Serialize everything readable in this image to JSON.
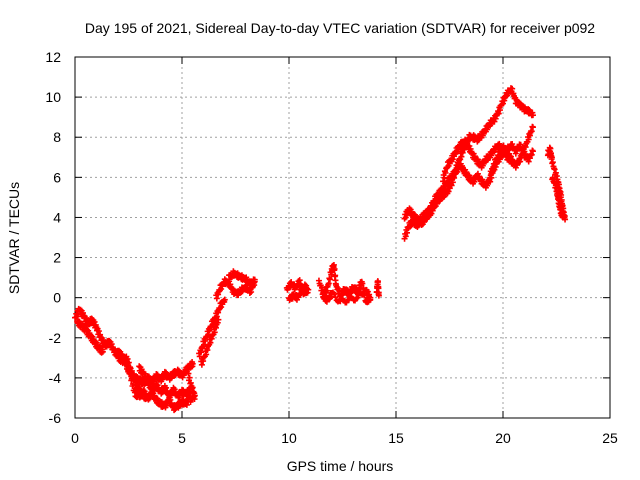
{
  "chart_data": {
    "type": "scatter",
    "title": "Day 195 of 2021, Sidereal Day-to-day VTEC variation (SDTVAR) for receiver p092",
    "xlabel": "GPS time / hours",
    "ylabel": "SDTVAR / TECUs",
    "xlim": [
      0,
      25
    ],
    "ylim": [
      -6,
      12
    ],
    "xticks": [
      0,
      5,
      10,
      15,
      20,
      25
    ],
    "yticks": [
      -6,
      -4,
      -2,
      0,
      2,
      4,
      6,
      8,
      10,
      12
    ],
    "grid": true,
    "marker": "+",
    "series": [
      {
        "name": "SDTVAR",
        "color": "#ff0000",
        "segments": [
          [
            [
              0.0,
              -1.0
            ],
            [
              0.2,
              -0.6
            ],
            [
              0.4,
              -0.9
            ],
            [
              0.6,
              -1.3
            ],
            [
              0.8,
              -1.1
            ],
            [
              1.0,
              -1.5
            ],
            [
              1.2,
              -2.0
            ],
            [
              1.4,
              -2.4
            ],
            [
              1.6,
              -2.2
            ],
            [
              1.8,
              -2.6
            ],
            [
              2.0,
              -2.9
            ],
            [
              2.2,
              -3.2
            ],
            [
              2.4,
              -3.0
            ],
            [
              2.6,
              -3.6
            ],
            [
              2.8,
              -4.2
            ],
            [
              3.0,
              -4.6
            ],
            [
              3.2,
              -4.9
            ],
            [
              3.4,
              -5.0
            ],
            [
              3.6,
              -4.8
            ],
            [
              3.8,
              -5.1
            ],
            [
              4.0,
              -5.3
            ],
            [
              4.2,
              -5.4
            ],
            [
              4.4,
              -5.1
            ],
            [
              4.6,
              -5.5
            ],
            [
              4.8,
              -5.4
            ],
            [
              5.0,
              -5.2
            ],
            [
              5.2,
              -5.3
            ],
            [
              5.4,
              -4.8
            ]
          ],
          [
            [
              0.1,
              -1.2
            ],
            [
              0.3,
              -1.4
            ],
            [
              0.5,
              -1.6
            ],
            [
              0.7,
              -1.9
            ],
            [
              0.9,
              -2.2
            ],
            [
              1.1,
              -2.5
            ],
            [
              1.3,
              -2.7
            ]
          ],
          [
            [
              2.4,
              -3.2
            ],
            [
              2.6,
              -3.9
            ],
            [
              2.8,
              -4.8
            ],
            [
              3.0,
              -4.9
            ],
            [
              3.2,
              -4.7
            ],
            [
              3.4,
              -5.0
            ]
          ],
          [
            [
              2.0,
              -2.7
            ],
            [
              2.2,
              -2.9
            ],
            [
              2.4,
              -3.4
            ],
            [
              2.6,
              -3.8
            ],
            [
              2.8,
              -4.0
            ],
            [
              3.0,
              -4.1
            ],
            [
              3.2,
              -4.3
            ],
            [
              3.4,
              -4.0
            ],
            [
              3.6,
              -4.2
            ],
            [
              3.8,
              -3.9
            ],
            [
              4.0,
              -4.1
            ],
            [
              4.2,
              -3.8
            ],
            [
              4.4,
              -4.0
            ],
            [
              4.6,
              -3.8
            ],
            [
              4.8,
              -3.7
            ],
            [
              5.0,
              -3.9
            ],
            [
              5.2,
              -3.6
            ],
            [
              5.4,
              -3.4
            ],
            [
              5.5,
              -3.3
            ]
          ],
          [
            [
              3.0,
              -3.5
            ],
            [
              3.2,
              -3.8
            ],
            [
              3.4,
              -4.2
            ],
            [
              3.6,
              -4.6
            ],
            [
              3.8,
              -4.4
            ],
            [
              4.0,
              -4.7
            ],
            [
              4.2,
              -4.5
            ],
            [
              4.4,
              -4.9
            ],
            [
              4.6,
              -4.6
            ],
            [
              4.8,
              -4.9
            ],
            [
              5.0,
              -4.7
            ],
            [
              5.2,
              -4.8
            ],
            [
              5.4,
              -4.5
            ]
          ],
          [
            [
              5.3,
              -3.9
            ],
            [
              5.5,
              -4.6
            ],
            [
              5.6,
              -5.0
            ],
            [
              5.4,
              -5.2
            ]
          ],
          [
            [
              5.8,
              -2.9
            ],
            [
              6.0,
              -2.3
            ],
            [
              6.2,
              -1.8
            ],
            [
              6.4,
              -1.3
            ],
            [
              6.6,
              -0.9
            ],
            [
              6.8,
              -0.4
            ],
            [
              7.0,
              -0.1
            ]
          ],
          [
            [
              5.9,
              -3.3
            ],
            [
              6.1,
              -2.8
            ],
            [
              6.3,
              -2.2
            ],
            [
              6.5,
              -1.7
            ],
            [
              6.7,
              -1.1
            ]
          ],
          [
            [
              6.6,
              0.0
            ],
            [
              6.8,
              0.5
            ],
            [
              7.0,
              0.8
            ],
            [
              7.2,
              0.7
            ],
            [
              7.4,
              0.3
            ],
            [
              7.6,
              0.2
            ],
            [
              7.8,
              0.4
            ],
            [
              8.0,
              0.5
            ],
            [
              8.2,
              0.3
            ],
            [
              8.4,
              0.8
            ]
          ],
          [
            [
              7.2,
              1.0
            ],
            [
              7.4,
              1.2
            ],
            [
              7.6,
              1.1
            ],
            [
              7.8,
              1.0
            ],
            [
              8.0,
              0.9
            ],
            [
              8.2,
              0.7
            ],
            [
              8.4,
              0.9
            ]
          ],
          [
            [
              9.9,
              0.4
            ],
            [
              10.1,
              0.7
            ],
            [
              10.3,
              0.5
            ],
            [
              10.5,
              0.8
            ],
            [
              10.7,
              0.2
            ],
            [
              10.9,
              0.4
            ]
          ],
          [
            [
              10.0,
              -0.1
            ],
            [
              10.2,
              0.1
            ],
            [
              10.4,
              0.0
            ],
            [
              10.6,
              0.4
            ],
            [
              10.8,
              0.6
            ]
          ],
          [
            [
              11.4,
              0.8
            ],
            [
              11.6,
              0.2
            ],
            [
              11.8,
              0.5
            ],
            [
              12.0,
              1.4
            ],
            [
              12.1,
              1.6
            ],
            [
              12.2,
              0.6
            ],
            [
              12.4,
              0.1
            ],
            [
              12.6,
              0.4
            ],
            [
              12.8,
              0.2
            ],
            [
              13.0,
              0.5
            ],
            [
              13.2,
              0.3
            ],
            [
              13.4,
              0.8
            ],
            [
              13.6,
              -0.2
            ],
            [
              13.8,
              0.0
            ]
          ],
          [
            [
              11.6,
              0.0
            ],
            [
              11.8,
              -0.1
            ],
            [
              12.0,
              0.2
            ],
            [
              12.4,
              -0.2
            ],
            [
              12.8,
              -0.1
            ],
            [
              13.2,
              0.0
            ],
            [
              13.6,
              0.4
            ],
            [
              13.8,
              -0.1
            ]
          ],
          [
            [
              14.1,
              0.3
            ],
            [
              14.15,
              0.8
            ],
            [
              14.2,
              0.1
            ]
          ],
          [
            [
              15.4,
              3.0
            ],
            [
              15.6,
              3.6
            ],
            [
              15.8,
              3.8
            ],
            [
              16.0,
              3.6
            ],
            [
              16.2,
              4.0
            ],
            [
              16.4,
              4.2
            ],
            [
              16.6,
              4.4
            ],
            [
              16.8,
              4.9
            ],
            [
              17.0,
              5.2
            ],
            [
              17.2,
              5.4
            ],
            [
              17.4,
              5.8
            ],
            [
              17.6,
              6.0
            ],
            [
              17.8,
              6.4
            ],
            [
              18.0,
              7.0
            ],
            [
              18.2,
              7.5
            ],
            [
              18.4,
              8.0
            ],
            [
              18.6,
              8.0
            ],
            [
              18.8,
              7.9
            ],
            [
              19.0,
              8.1
            ],
            [
              19.2,
              8.4
            ],
            [
              19.4,
              8.7
            ],
            [
              19.6,
              8.9
            ],
            [
              19.8,
              9.3
            ],
            [
              20.0,
              9.8
            ],
            [
              20.2,
              10.2
            ],
            [
              20.4,
              10.4
            ],
            [
              20.6,
              9.8
            ],
            [
              20.8,
              9.6
            ],
            [
              21.0,
              9.4
            ],
            [
              21.2,
              9.3
            ],
            [
              21.4,
              9.1
            ]
          ],
          [
            [
              15.4,
              4.0
            ],
            [
              15.6,
              4.4
            ],
            [
              15.8,
              4.1
            ],
            [
              16.0,
              3.9
            ],
            [
              16.2,
              3.7
            ],
            [
              16.4,
              4.0
            ],
            [
              16.6,
              4.2
            ],
            [
              16.8,
              4.6
            ],
            [
              17.0,
              4.9
            ],
            [
              17.2,
              5.1
            ],
            [
              17.4,
              5.3
            ],
            [
              17.6,
              5.7
            ],
            [
              17.8,
              6.3
            ],
            [
              18.0,
              6.6
            ],
            [
              18.2,
              6.3
            ],
            [
              18.4,
              6.0
            ],
            [
              18.6,
              5.8
            ],
            [
              18.8,
              6.1
            ],
            [
              19.0,
              5.8
            ],
            [
              19.2,
              5.6
            ],
            [
              19.4,
              5.9
            ],
            [
              19.6,
              6.5
            ],
            [
              19.8,
              6.9
            ],
            [
              20.0,
              7.2
            ],
            [
              20.2,
              7.4
            ],
            [
              20.4,
              7.6
            ],
            [
              20.6,
              7.3
            ],
            [
              20.8,
              7.6
            ],
            [
              21.0,
              7.1
            ],
            [
              21.2,
              6.9
            ],
            [
              21.4,
              7.3
            ]
          ],
          [
            [
              17.2,
              5.9
            ],
            [
              17.4,
              6.6
            ],
            [
              17.6,
              6.9
            ],
            [
              17.8,
              7.3
            ],
            [
              18.0,
              7.6
            ],
            [
              18.2,
              7.8
            ],
            [
              18.4,
              7.5
            ],
            [
              18.6,
              7.1
            ],
            [
              18.8,
              6.8
            ],
            [
              19.0,
              6.6
            ],
            [
              19.2,
              6.9
            ],
            [
              19.4,
              7.1
            ],
            [
              19.6,
              7.4
            ],
            [
              19.8,
              7.6
            ],
            [
              20.0,
              7.3
            ],
            [
              20.2,
              7.0
            ],
            [
              20.4,
              6.8
            ],
            [
              20.6,
              6.6
            ],
            [
              20.8,
              6.9
            ],
            [
              21.0,
              7.4
            ],
            [
              21.2,
              8.0
            ],
            [
              21.4,
              8.5
            ]
          ],
          [
            [
              19.4,
              6.1
            ],
            [
              19.6,
              6.7
            ],
            [
              19.8,
              7.1
            ],
            [
              20.0,
              7.5
            ],
            [
              20.2,
              7.3
            ],
            [
              20.4,
              6.9
            ]
          ],
          [
            [
              22.1,
              7.2
            ],
            [
              22.2,
              7.4
            ],
            [
              22.3,
              6.8
            ],
            [
              22.5,
              6.0
            ],
            [
              22.6,
              5.6
            ],
            [
              22.7,
              5.1
            ],
            [
              22.8,
              4.4
            ],
            [
              22.9,
              3.9
            ]
          ],
          [
            [
              22.3,
              6.0
            ],
            [
              22.5,
              5.4
            ],
            [
              22.6,
              4.8
            ],
            [
              22.7,
              4.3
            ],
            [
              22.8,
              4.0
            ]
          ]
        ]
      }
    ]
  }
}
